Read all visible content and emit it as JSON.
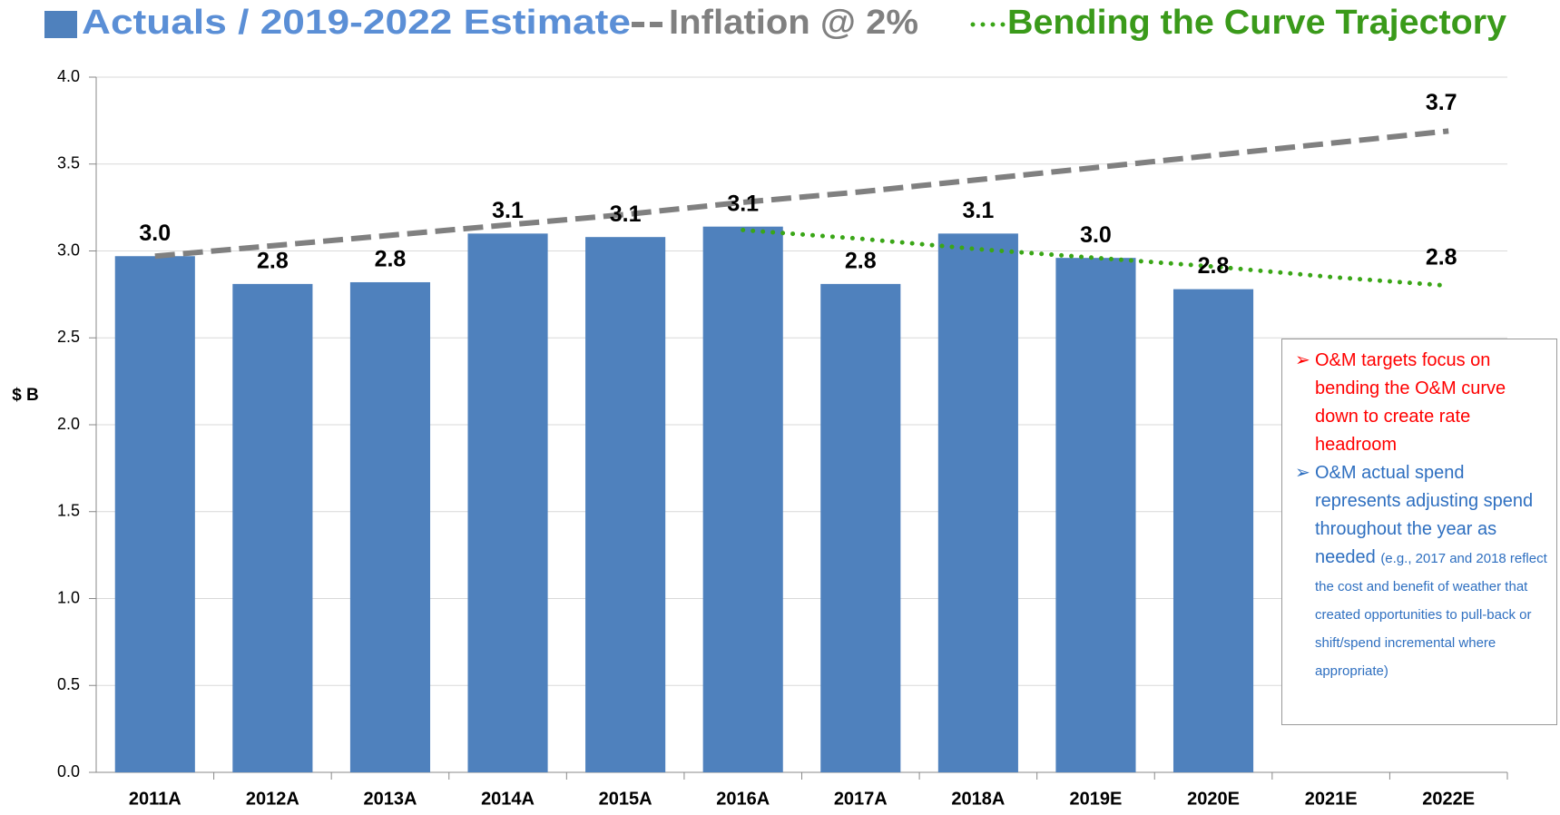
{
  "chart_data": {
    "type": "bar",
    "y_label": "$ B",
    "categories": [
      "2011A",
      "2012A",
      "2013A",
      "2014A",
      "2015A",
      "2016A",
      "2017A",
      "2018A",
      "2019E",
      "2020E",
      "2021E",
      "2022E"
    ],
    "series": [
      {
        "name": "Actuals / 2019-2022 Estimate",
        "kind": "bar",
        "color": "#4f81bd",
        "legend_color": "#5b8fd6",
        "values": [
          2.97,
          2.81,
          2.82,
          3.1,
          3.08,
          3.14,
          2.81,
          3.1,
          2.96,
          2.78,
          null,
          null
        ],
        "value_labels": [
          "3.0",
          "2.8",
          "2.8",
          "3.1",
          "3.1",
          "3.1",
          "2.8",
          "3.1",
          "3.0",
          "2.8",
          null,
          null
        ]
      },
      {
        "name": "Inflation @ 2%",
        "kind": "line",
        "style": "dashed",
        "color": "#808080",
        "legend_color": "#808080",
        "values": [
          2.97,
          3.03,
          3.09,
          3.15,
          3.21,
          3.28,
          3.34,
          3.41,
          3.48,
          3.55,
          3.62,
          3.69
        ],
        "value_labels": [
          null,
          null,
          null,
          null,
          null,
          null,
          null,
          null,
          null,
          null,
          null,
          "3.7"
        ]
      },
      {
        "name": "Bending the Curve Trajectory",
        "kind": "line",
        "style": "dotted",
        "color": "#3aa617",
        "legend_color": "#3a9a1a",
        "values": [
          null,
          null,
          null,
          null,
          null,
          3.12,
          3.07,
          3.01,
          2.96,
          2.91,
          2.85,
          2.8
        ],
        "value_labels": [
          null,
          null,
          null,
          null,
          null,
          null,
          null,
          null,
          null,
          null,
          null,
          "2.8"
        ]
      }
    ],
    "ylim": [
      0,
      4
    ],
    "yticks": [
      {
        "value": 0,
        "label": "0.0"
      },
      0.5,
      {
        "value": 1,
        "label": "1.0"
      },
      1.5,
      {
        "value": 2,
        "label": "2.0"
      },
      2.5,
      {
        "value": 3,
        "label": "3.0"
      },
      3.5,
      {
        "value": 4,
        "label": "4.0"
      }
    ],
    "grid": true,
    "notes": [
      {
        "text": "O&M targets focus on bending the O&M curve down to create rate headroom",
        "color": "#ff0000"
      },
      {
        "text": "O&M actual spend represents adjusting spend throughout the year as needed",
        "detail": "(e.g., 2017 and 2018 reflect the cost and benefit of weather that created opportunities to pull-back or shift/spend incremental where appropriate)",
        "color": "#2e6fc0"
      }
    ]
  }
}
